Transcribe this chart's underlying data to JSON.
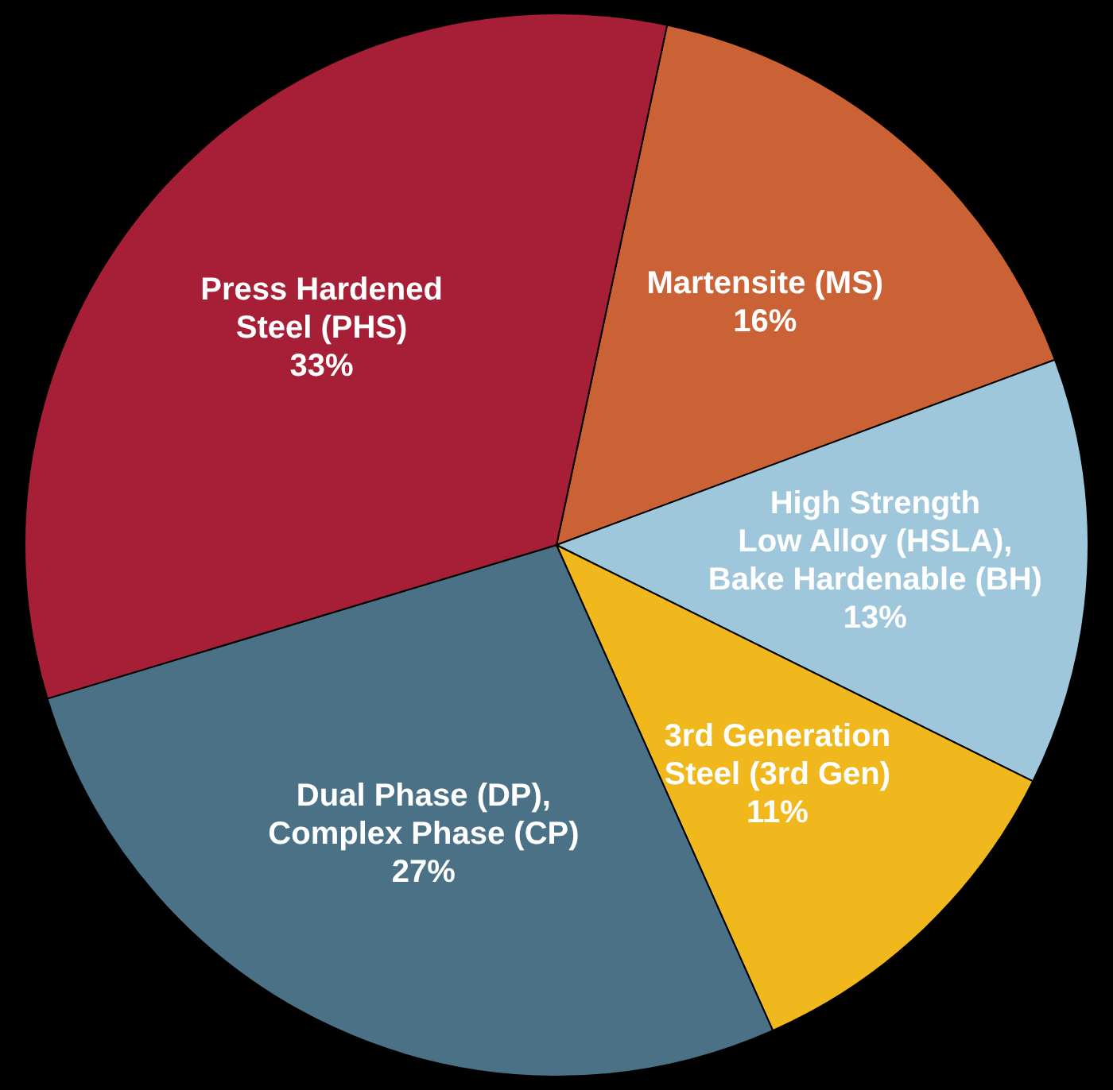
{
  "chart_data": {
    "type": "pie",
    "categories": [
      "Martensite (MS)",
      "High Strength\nLow Alloy (HSLA),\nBake Hardenable (BH)",
      "3rd Generation\nSteel (3rd Gen)",
      "Dual Phase (DP),\nComplex Phase (CP)",
      "Press Hardened\nSteel (PHS)"
    ],
    "values": [
      16,
      13,
      11,
      27,
      33
    ],
    "value_labels": [
      "16%",
      "13%",
      "11%",
      "27%",
      "33%"
    ],
    "colors": [
      "#cb6235",
      "#9ec7dc",
      "#f0b81c",
      "#4a7186",
      "#a71f36"
    ],
    "legend": false
  }
}
